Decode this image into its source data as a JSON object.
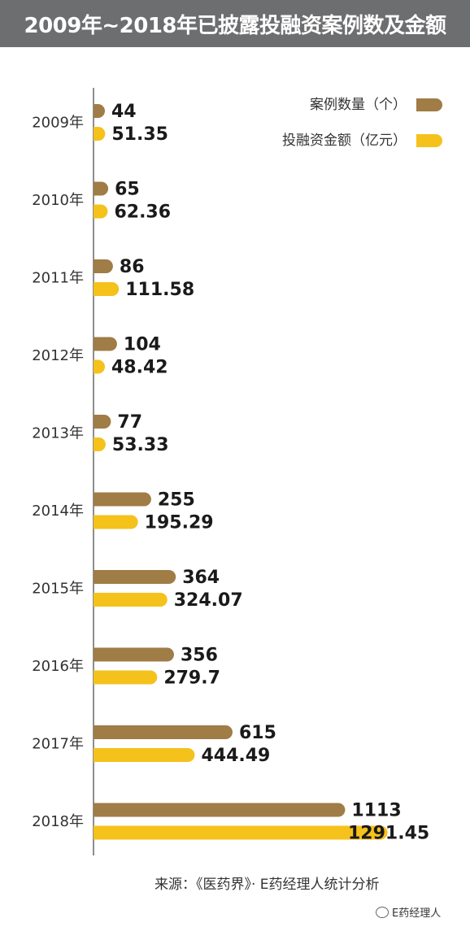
{
  "title": "2009年~2018年已披露投融资案例数及金额",
  "colors": {
    "count": "#a07c46",
    "amount": "#f5c21b",
    "title_bg": "#6d6e70"
  },
  "chart_data": {
    "type": "bar",
    "orientation": "horizontal",
    "categories": [
      "2009年",
      "2010年",
      "2011年",
      "2012年",
      "2013年",
      "2014年",
      "2015年",
      "2016年",
      "2017年",
      "2018年"
    ],
    "series": [
      {
        "name": "案例数量（个）",
        "values": [
          44,
          65,
          86,
          104,
          77,
          255,
          364,
          356,
          615,
          1113
        ],
        "labels": [
          "44",
          "65",
          "86",
          "104",
          "77",
          "255",
          "364",
          "356",
          "615",
          "1113"
        ]
      },
      {
        "name": "投融资金额（亿元）",
        "values": [
          51.35,
          62.36,
          111.58,
          48.42,
          53.33,
          195.29,
          324.07,
          279.7,
          444.49,
          1291.45
        ],
        "labels": [
          "51.35",
          "62.36",
          "111.58",
          "48.42",
          "53.33",
          "195.29",
          "324.07",
          "279.7",
          "444.49",
          "1291.45"
        ]
      }
    ],
    "legend": "top-right",
    "grid": false
  },
  "source": "来源：《医药界》· E药经理人统计分析",
  "watermark": "E药经理人"
}
